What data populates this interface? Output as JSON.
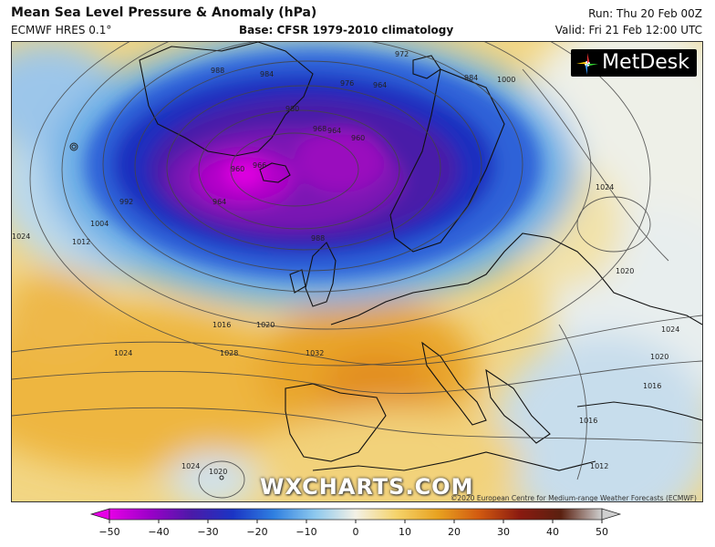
{
  "header": {
    "title": "Mean Sea Level Pressure & Anomaly (hPa)",
    "model": "ECMWF HRES 0.1°",
    "base": "Base: CFSR 1979-2010 climatology",
    "run": "Run: Thu 20 Feb 00Z",
    "valid": "Valid: Fri 21 Feb 12:00 UTC"
  },
  "branding": {
    "logo": "MetDesk",
    "watermark": "WXCHARTS.COM",
    "credit": "©2020 European Centre for Medium-range Weather Forecasts (ECMWF)"
  },
  "isobar_labels": [
    "988",
    "984",
    "980",
    "976",
    "972",
    "966",
    "964",
    "968",
    "964",
    "960",
    "984",
    "1000",
    "992",
    "1004",
    "1012",
    "1024",
    "960",
    "964",
    "988",
    "1016",
    "1020",
    "1024",
    "1028",
    "1032",
    "1024",
    "1020",
    "1024",
    "1020",
    "1016",
    "1012",
    "1016",
    "1020",
    "1024"
  ],
  "colorbar": {
    "ticks": [
      "−50",
      "−40",
      "−30",
      "−20",
      "−10",
      "0",
      "10",
      "20",
      "30",
      "40",
      "50"
    ],
    "colors": [
      "#e600e6",
      "#9a00c8",
      "#4b1aa8",
      "#1b34c4",
      "#2f7fe0",
      "#8cc8ee",
      "#f3f1e6",
      "#f5d36a",
      "#e8a220",
      "#d25a10",
      "#8a1a10",
      "#5a2010",
      "#cfcfcf"
    ]
  }
}
